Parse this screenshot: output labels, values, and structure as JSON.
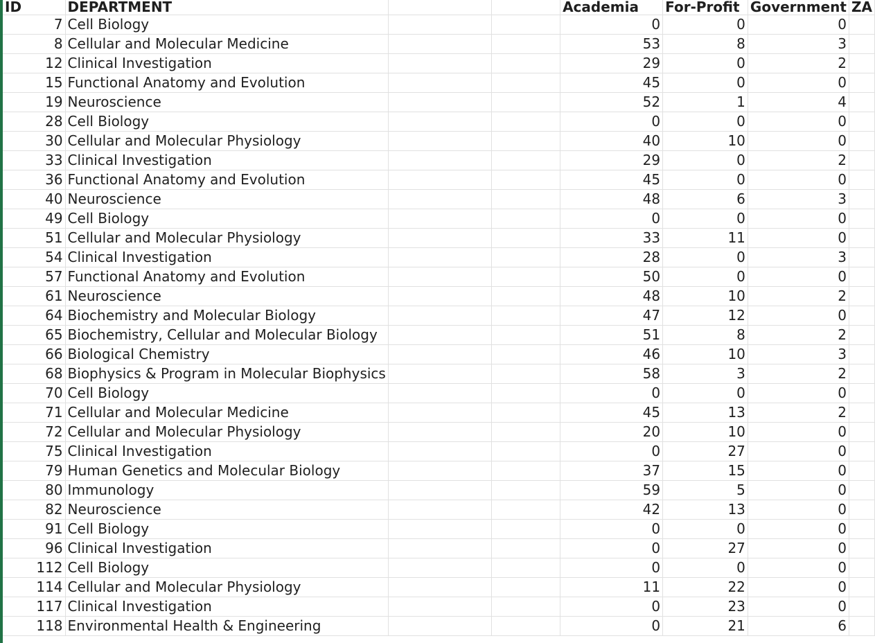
{
  "headers": {
    "id": "ID",
    "department": "DEPARTMENT",
    "academia": "Academia",
    "for_profit": "For-Profit",
    "government": "Government",
    "next_partial": "ZA"
  },
  "rows": [
    {
      "id": "7",
      "department": "Cell Biology",
      "academia": "0",
      "for_profit": "0",
      "government": "0"
    },
    {
      "id": "8",
      "department": "Cellular and Molecular Medicine",
      "academia": "53",
      "for_profit": "8",
      "government": "3"
    },
    {
      "id": "12",
      "department": "Clinical Investigation",
      "academia": "29",
      "for_profit": "0",
      "government": "2"
    },
    {
      "id": "15",
      "department": "Functional Anatomy and Evolution",
      "academia": "45",
      "for_profit": "0",
      "government": "0"
    },
    {
      "id": "19",
      "department": "Neuroscience",
      "academia": "52",
      "for_profit": "1",
      "government": "4"
    },
    {
      "id": "28",
      "department": "Cell Biology",
      "academia": "0",
      "for_profit": "0",
      "government": "0"
    },
    {
      "id": "30",
      "department": "Cellular and Molecular Physiology",
      "academia": "40",
      "for_profit": "10",
      "government": "0"
    },
    {
      "id": "33",
      "department": "Clinical Investigation",
      "academia": "29",
      "for_profit": "0",
      "government": "2"
    },
    {
      "id": "36",
      "department": "Functional Anatomy and Evolution",
      "academia": "45",
      "for_profit": "0",
      "government": "0"
    },
    {
      "id": "40",
      "department": "Neuroscience",
      "academia": "48",
      "for_profit": "6",
      "government": "3"
    },
    {
      "id": "49",
      "department": "Cell Biology",
      "academia": "0",
      "for_profit": "0",
      "government": "0"
    },
    {
      "id": "51",
      "department": "Cellular and Molecular Physiology",
      "academia": "33",
      "for_profit": "11",
      "government": "0"
    },
    {
      "id": "54",
      "department": "Clinical Investigation",
      "academia": "28",
      "for_profit": "0",
      "government": "3"
    },
    {
      "id": "57",
      "department": "Functional Anatomy and Evolution",
      "academia": "50",
      "for_profit": "0",
      "government": "0"
    },
    {
      "id": "61",
      "department": "Neuroscience",
      "academia": "48",
      "for_profit": "10",
      "government": "2"
    },
    {
      "id": "64",
      "department": "Biochemistry and Molecular Biology",
      "academia": "47",
      "for_profit": "12",
      "government": "0"
    },
    {
      "id": "65",
      "department": "Biochemistry, Cellular and Molecular Biology",
      "academia": "51",
      "for_profit": "8",
      "government": "2"
    },
    {
      "id": "66",
      "department": "Biological Chemistry",
      "academia": "46",
      "for_profit": "10",
      "government": "3"
    },
    {
      "id": "68",
      "department": "Biophysics & Program in Molecular Biophysics",
      "academia": "58",
      "for_profit": "3",
      "government": "2"
    },
    {
      "id": "70",
      "department": "Cell Biology",
      "academia": "0",
      "for_profit": "0",
      "government": "0"
    },
    {
      "id": "71",
      "department": "Cellular and Molecular Medicine",
      "academia": "45",
      "for_profit": "13",
      "government": "2"
    },
    {
      "id": "72",
      "department": "Cellular and Molecular Physiology",
      "academia": "20",
      "for_profit": "10",
      "government": "0"
    },
    {
      "id": "75",
      "department": "Clinical Investigation",
      "academia": "0",
      "for_profit": "27",
      "government": "0"
    },
    {
      "id": "79",
      "department": "Human Genetics and Molecular Biology",
      "academia": "37",
      "for_profit": "15",
      "government": "0"
    },
    {
      "id": "80",
      "department": "Immunology",
      "academia": "59",
      "for_profit": "5",
      "government": "0"
    },
    {
      "id": "82",
      "department": "Neuroscience",
      "academia": "42",
      "for_profit": "13",
      "government": "0"
    },
    {
      "id": "91",
      "department": "Cell Biology",
      "academia": "0",
      "for_profit": "0",
      "government": "0"
    },
    {
      "id": "96",
      "department": "Clinical Investigation",
      "academia": "0",
      "for_profit": "27",
      "government": "0"
    },
    {
      "id": "112",
      "department": "Cell Biology",
      "academia": "0",
      "for_profit": "0",
      "government": "0"
    },
    {
      "id": "114",
      "department": "Cellular and Molecular Physiology",
      "academia": "11",
      "for_profit": "22",
      "government": "0"
    },
    {
      "id": "117",
      "department": "Clinical Investigation",
      "academia": "0",
      "for_profit": "23",
      "government": "0"
    },
    {
      "id": "118",
      "department": "Environmental Health & Engineering",
      "academia": "0",
      "for_profit": "21",
      "government": "6"
    }
  ]
}
